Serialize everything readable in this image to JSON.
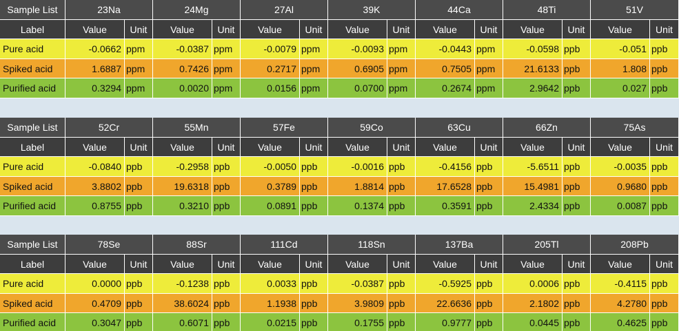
{
  "blocks": [
    {
      "header": [
        "Sample List",
        "23Na",
        "24Mg",
        "27Al",
        "39K",
        "44Ca",
        "48Ti",
        "51V"
      ],
      "subheader": [
        "Label",
        "Value",
        "Unit",
        "Value",
        "Unit",
        "Value",
        "Unit",
        "Value",
        "Unit",
        "Value",
        "Unit",
        "Value",
        "Unit",
        "Value",
        "Unit"
      ],
      "rows": [
        [
          "Pure acid",
          "-0.0662",
          "ppm",
          "-0.0387",
          "ppm",
          "-0.0079",
          "ppm",
          "-0.0093",
          "ppm",
          "-0.0443",
          "ppm",
          "-0.0598",
          "ppb",
          "-0.051",
          "ppb"
        ],
        [
          "Spiked acid",
          "1.6887",
          "ppm",
          "0.7426",
          "ppm",
          "0.2717",
          "ppm",
          "0.6905",
          "ppm",
          "0.7505",
          "ppm",
          "21.6133",
          "ppb",
          "1.808",
          "ppb"
        ],
        [
          "Purified acid",
          "0.3294",
          "ppm",
          "0.0020",
          "ppm",
          "0.0156",
          "ppm",
          "0.0700",
          "ppm",
          "0.2674",
          "ppm",
          "2.9642",
          "ppb",
          "0.027",
          "ppb"
        ]
      ]
    },
    {
      "header": [
        "Sample List",
        "52Cr",
        "55Mn",
        "57Fe",
        "59Co",
        "63Cu",
        "66Zn",
        "75As"
      ],
      "subheader": [
        "Label",
        "Value",
        "Unit",
        "Value",
        "Unit",
        "Value",
        "Unit",
        "Value",
        "Unit",
        "Value",
        "Unit",
        "Value",
        "Unit",
        "Value",
        "Unit"
      ],
      "rows": [
        [
          "Pure acid",
          "-0.0840",
          "ppb",
          "-0.2958",
          "ppb",
          "-0.0050",
          "ppb",
          "-0.0016",
          "ppb",
          "-0.4156",
          "ppb",
          "-5.6511",
          "ppb",
          "-0.0035",
          "ppb"
        ],
        [
          "Spiked acid",
          "3.8802",
          "ppb",
          "19.6318",
          "ppb",
          "0.3789",
          "ppb",
          "1.8814",
          "ppb",
          "17.6528",
          "ppb",
          "15.4981",
          "ppb",
          "0.9680",
          "ppb"
        ],
        [
          "Purified acid",
          "0.8755",
          "ppb",
          "0.3210",
          "ppb",
          "0.0891",
          "ppb",
          "0.1374",
          "ppb",
          "0.3591",
          "ppb",
          "2.4334",
          "ppb",
          "0.0087",
          "ppb"
        ]
      ]
    },
    {
      "header": [
        "Sample List",
        "78Se",
        "88Sr",
        "111Cd",
        "118Sn",
        "137Ba",
        "205Tl",
        "208Pb"
      ],
      "subheader": [
        "Label",
        "Value",
        "Unit",
        "Value",
        "Unit",
        "Value",
        "Unit",
        "Value",
        "Unit",
        "Value",
        "Unit",
        "Value",
        "Unit",
        "Value",
        "Unit"
      ],
      "rows": [
        [
          "Pure acid",
          "0.0000",
          "ppb",
          "-0.1238",
          "ppb",
          "0.0033",
          "ppb",
          "-0.0387",
          "ppb",
          "-0.5925",
          "ppb",
          "0.0006",
          "ppb",
          "-0.4115",
          "ppb"
        ],
        [
          "Spiked acid",
          "0.4709",
          "ppb",
          "38.6024",
          "ppb",
          "1.1938",
          "ppb",
          "3.9809",
          "ppb",
          "22.6636",
          "ppb",
          "2.1802",
          "ppb",
          "4.2780",
          "ppb"
        ],
        [
          "Purified acid",
          "0.3047",
          "ppb",
          "0.6071",
          "ppb",
          "0.0215",
          "ppb",
          "0.1755",
          "ppb",
          "0.9777",
          "ppb",
          "0.0445",
          "ppb",
          "0.4625",
          "ppb"
        ]
      ]
    }
  ]
}
